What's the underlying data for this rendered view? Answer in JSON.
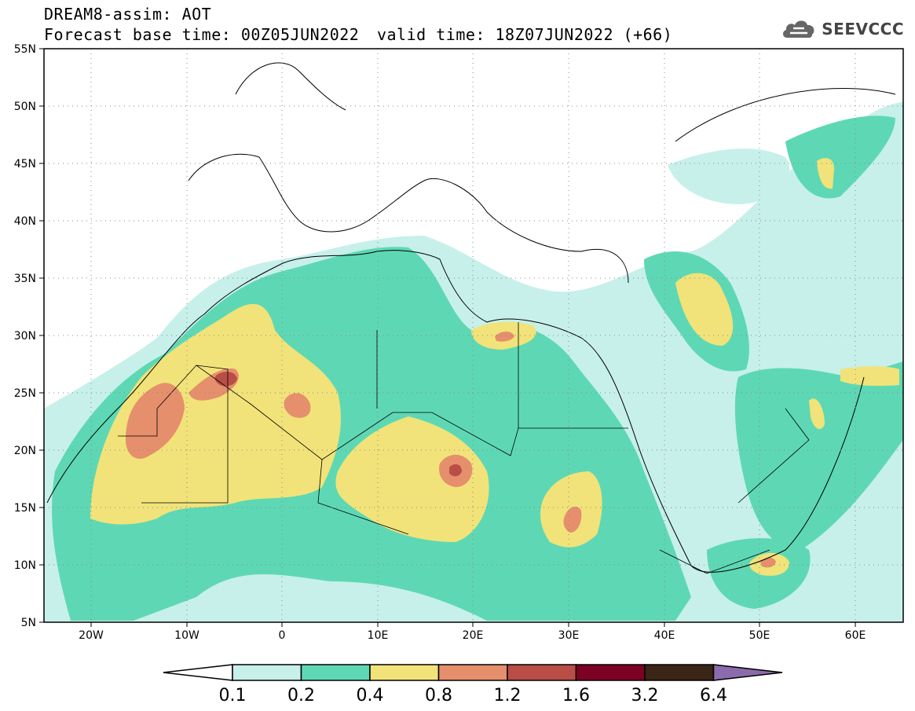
{
  "header": {
    "title_line1": "DREAM8-assim: AOT",
    "title_line2a": "Forecast base time: 00Z05JUN2022",
    "title_line2b": "valid time: 18Z07JUN2022 (+66)"
  },
  "logo": {
    "text": "SEEVCCC",
    "icon": "cloud-icon"
  },
  "map": {
    "lat_labels": [
      "55N",
      "50N",
      "45N",
      "40N",
      "35N",
      "30N",
      "25N",
      "20N",
      "15N",
      "10N",
      "5N"
    ],
    "lon_labels": [
      "20W",
      "10W",
      "0",
      "10E",
      "20E",
      "30E",
      "40E",
      "50E",
      "60E"
    ],
    "lat_range": [
      5,
      55
    ],
    "lon_range": [
      -25,
      65
    ],
    "grid": "dotted"
  },
  "legend": {
    "labels": [
      "0.1",
      "0.2",
      "0.4",
      "0.8",
      "1.2",
      "1.6",
      "3.2",
      "6.4"
    ],
    "colors": [
      "#c7f0ea",
      "#5ed8b4",
      "#f1e379",
      "#e58f6c",
      "#b84e46",
      "#7d0124",
      "#3b2516",
      "#8b6bac"
    ],
    "min_arrow_color": "#ffffff",
    "max_arrow_color": "#8b6bac"
  }
}
